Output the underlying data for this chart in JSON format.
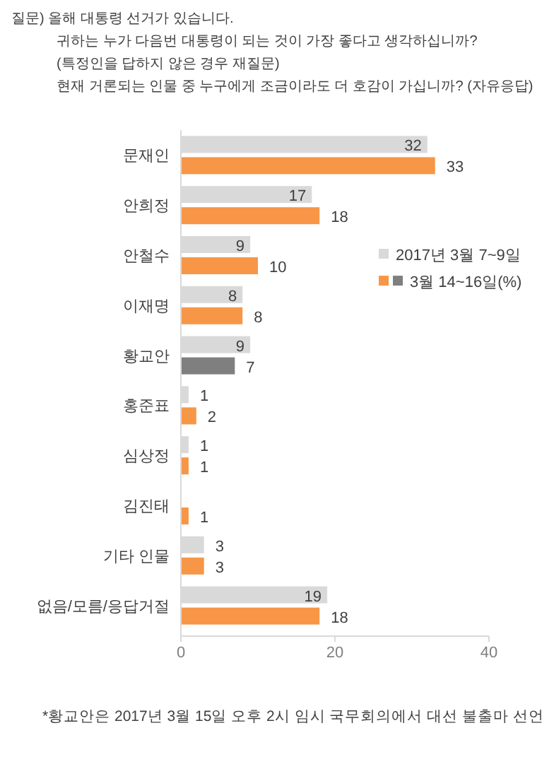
{
  "chart_data": {
    "type": "bar",
    "orientation": "horizontal",
    "title": "질문) 올해 대통령 선거가 있습니다.\n귀하는 누가 다음번 대통령이 되는 것이 가장 좋다고 생각하십니까?\n(특정인을 답하지 않은 경우 재질문)\n현재 거론되는 인물 중 누구에게 조금이라도 더 호감이 가십니까? (자유응답)",
    "categories": [
      "문재인",
      "안희정",
      "안철수",
      "이재명",
      "황교안",
      "홍준표",
      "심상정",
      "김진태",
      "기타 인물",
      "없음/모름/응답거절"
    ],
    "series": [
      {
        "name": "2017년 3월 7~9일",
        "color": "#d9d9d9",
        "values": [
          32,
          17,
          9,
          8,
          9,
          1,
          1,
          null,
          3,
          19
        ]
      },
      {
        "name": "3월 14~16일(%)",
        "color": "#f79646",
        "colors": [
          "#f79646",
          "#f79646",
          "#f79646",
          "#f79646",
          "#7f7f7f",
          "#f79646",
          "#f79646",
          "#f79646",
          "#f79646",
          "#f79646"
        ],
        "values": [
          33,
          18,
          10,
          8,
          7,
          2,
          1,
          1,
          3,
          18
        ]
      }
    ],
    "xlim": [
      0,
      40
    ],
    "xticks": [
      0,
      20,
      40
    ],
    "data_labels": true,
    "grid": false,
    "legend": "right",
    "annotations": [
      "*황교안은 2017년 3월 15일 오후 2시 임시 국무회의에서 대선 불출마 선언"
    ]
  }
}
